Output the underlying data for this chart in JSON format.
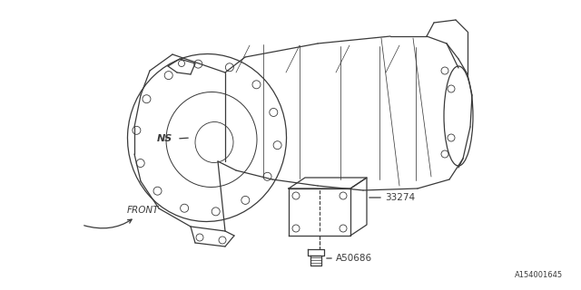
{
  "bg_color": "#ffffff",
  "line_color": "#3a3a3a",
  "ref_number": "A154001645",
  "label_NS": "NS",
  "label_part": "33274",
  "label_bolt": "A50686",
  "label_front": "FRONT",
  "figsize": [
    6.4,
    3.2
  ],
  "dpi": 100
}
